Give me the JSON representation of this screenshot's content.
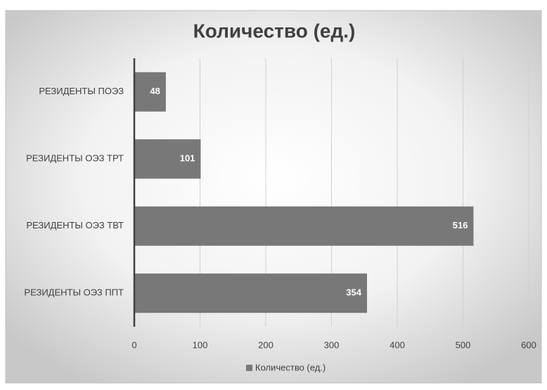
{
  "chart_data": {
    "type": "bar",
    "orientation": "horizontal",
    "title": "Количество (ед.)",
    "categories": [
      "РЕЗИДЕНТЫ ПОЭЗ",
      "РЕЗИДЕНТЫ ОЭЗ ТРТ",
      "РЕЗИДЕНТЫ ОЭЗ ТВТ",
      "РЕЗИДЕНТЫ ОЭЗ ППТ"
    ],
    "series": [
      {
        "name": "Количество (ед.)",
        "color": "#787878",
        "values": [
          48,
          101,
          516,
          354
        ]
      }
    ],
    "xlim": [
      0,
      600
    ],
    "xticks": [
      0,
      100,
      200,
      300,
      400,
      500,
      600
    ],
    "grid": true,
    "legend": "bottom"
  }
}
